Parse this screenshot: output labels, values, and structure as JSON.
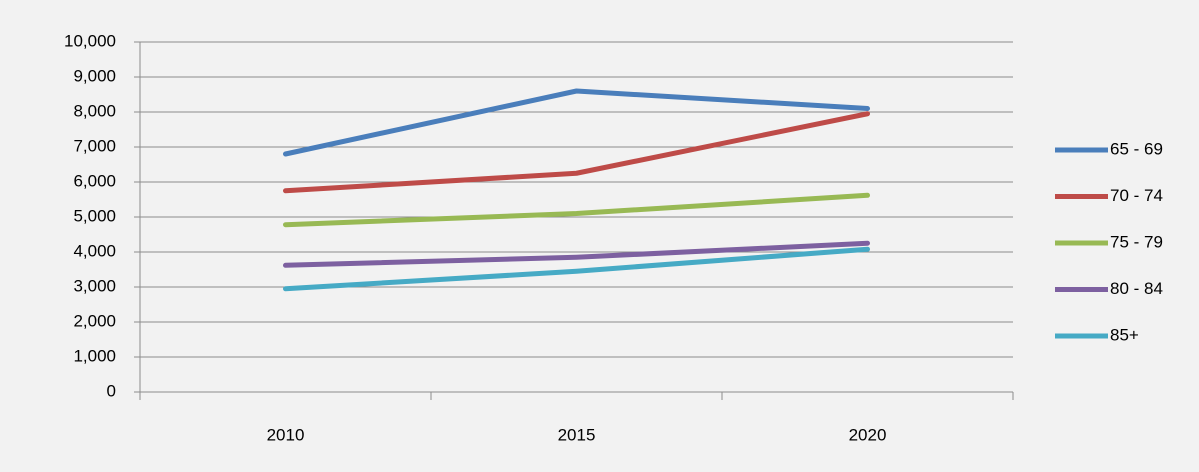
{
  "chart_data": {
    "type": "line",
    "categories": [
      "2010",
      "2015",
      "2020"
    ],
    "series": [
      {
        "name": "65 - 69",
        "color": "#4a7ebb",
        "values": [
          6800,
          8600,
          8100
        ]
      },
      {
        "name": "70 - 74",
        "color": "#be4b48",
        "values": [
          5750,
          6250,
          7950
        ]
      },
      {
        "name": "75 - 79",
        "color": "#98b954",
        "values": [
          4780,
          5100,
          5620
        ]
      },
      {
        "name": "80 - 84",
        "color": "#7d60a0",
        "values": [
          3620,
          3850,
          4250
        ]
      },
      {
        "name": "85+",
        "color": "#46aac5",
        "values": [
          2950,
          3450,
          4080
        ]
      }
    ],
    "ylim": [
      0,
      10000
    ],
    "yticks": [
      0,
      {
        "value": 1000,
        "label": "1,000"
      },
      {
        "value": 2000,
        "label": "2,000"
      },
      {
        "value": 3000,
        "label": "3,000"
      },
      {
        "value": 4000,
        "label": "4,000"
      },
      {
        "value": 5000,
        "label": "5,000"
      },
      {
        "value": 6000,
        "label": "6,000"
      },
      {
        "value": 7000,
        "label": "7,000"
      },
      {
        "value": 8000,
        "label": "8,000"
      },
      {
        "value": 9000,
        "label": "9,000"
      },
      {
        "value": 10000,
        "label": "10,000"
      }
    ],
    "grid": true,
    "legend": "right"
  }
}
